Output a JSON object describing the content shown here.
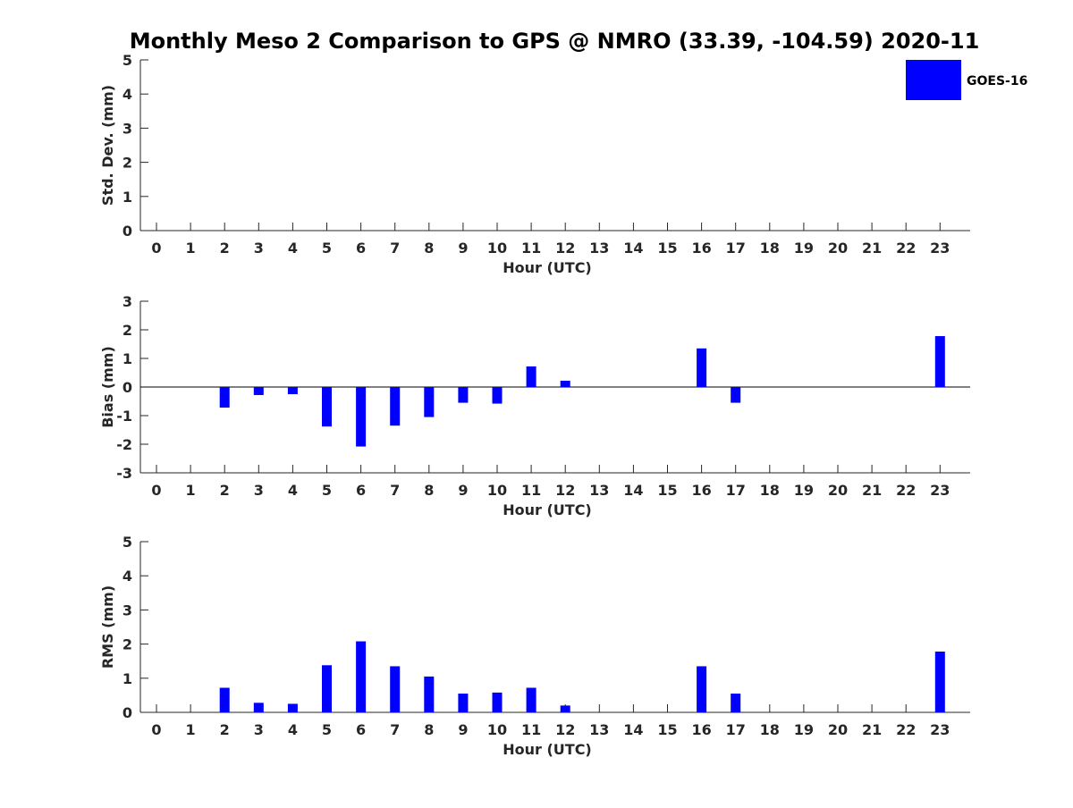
{
  "figure": {
    "title": "Monthly Meso 2 Comparison to GPS @ NMRO (33.39, -104.59) 2020-11"
  },
  "legend": {
    "label": "GOES-16",
    "color": "#0000ff",
    "placement": "top-right"
  },
  "colors": {
    "bar": "#0000ff",
    "axis": "#262626",
    "zero_line": "#000000"
  },
  "chart_data": [
    {
      "type": "bar",
      "title": "Monthly Meso 2 Comparison to GPS @ NMRO (33.39, -104.59) 2020-11",
      "xlabel": "Hour (UTC)",
      "ylabel": "Std. Dev. (mm)",
      "ylim": [
        0,
        5
      ],
      "yticks": [
        0,
        1,
        2,
        3,
        4,
        5
      ],
      "categories": [
        0,
        1,
        2,
        3,
        4,
        5,
        6,
        7,
        8,
        9,
        10,
        11,
        12,
        13,
        14,
        15,
        16,
        17,
        18,
        19,
        20,
        21,
        22,
        23
      ],
      "series": [
        {
          "name": "GOES-16",
          "values": [
            null,
            null,
            0,
            0,
            0,
            0,
            0,
            0,
            0,
            0,
            0,
            0,
            0,
            null,
            null,
            null,
            0,
            0,
            null,
            null,
            null,
            null,
            null,
            0
          ]
        }
      ],
      "zero_line": false
    },
    {
      "type": "bar",
      "xlabel": "Hour (UTC)",
      "ylabel": "Bias (mm)",
      "ylim": [
        -3,
        3
      ],
      "yticks": [
        -3,
        -2,
        -1,
        0,
        1,
        2,
        3
      ],
      "categories": [
        0,
        1,
        2,
        3,
        4,
        5,
        6,
        7,
        8,
        9,
        10,
        11,
        12,
        13,
        14,
        15,
        16,
        17,
        18,
        19,
        20,
        21,
        22,
        23
      ],
      "series": [
        {
          "name": "GOES-16",
          "values": [
            null,
            null,
            -0.72,
            -0.28,
            -0.25,
            -1.38,
            -2.08,
            -1.35,
            -1.05,
            -0.55,
            -0.58,
            0.72,
            0.22,
            null,
            null,
            null,
            1.35,
            -0.55,
            null,
            null,
            null,
            null,
            null,
            1.78
          ]
        }
      ],
      "zero_line": true
    },
    {
      "type": "bar",
      "xlabel": "Hour (UTC)",
      "ylabel": "RMS (mm)",
      "ylim": [
        0,
        5
      ],
      "yticks": [
        0,
        1,
        2,
        3,
        4,
        5
      ],
      "categories": [
        0,
        1,
        2,
        3,
        4,
        5,
        6,
        7,
        8,
        9,
        10,
        11,
        12,
        13,
        14,
        15,
        16,
        17,
        18,
        19,
        20,
        21,
        22,
        23
      ],
      "series": [
        {
          "name": "GOES-16",
          "values": [
            null,
            null,
            0.72,
            0.28,
            0.25,
            1.38,
            2.08,
            1.35,
            1.05,
            0.55,
            0.58,
            0.72,
            0.2,
            null,
            null,
            null,
            1.35,
            0.55,
            null,
            null,
            null,
            null,
            null,
            1.78
          ]
        }
      ],
      "zero_line": false
    }
  ]
}
